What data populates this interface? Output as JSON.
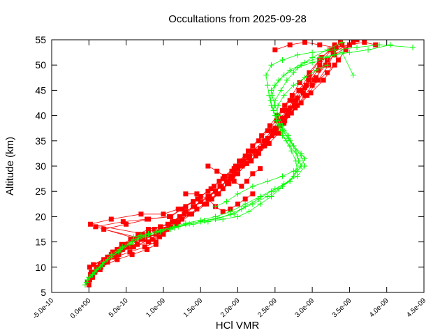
{
  "chart_data": {
    "type": "line",
    "title": "Occultations from 2025-09-28",
    "xlabel": "HCl VMR",
    "ylabel": "Altitude (km)",
    "xlim": [
      -5e-10,
      4.5e-09
    ],
    "ylim": [
      5,
      55
    ],
    "x_ticks": [
      -5e-10,
      0,
      5e-10,
      1e-09,
      1.5e-09,
      2e-09,
      2.5e-09,
      3e-09,
      3.5e-09,
      4e-09,
      4.5e-09
    ],
    "x_tick_labels": [
      "-5.0e-10",
      "0.0e+00",
      "5.0e-10",
      "1.0e-09",
      "1.5e-09",
      "2.0e-09",
      "2.5e-09",
      "3.0e-09",
      "3.5e-09",
      "4.0e-09",
      "4.5e-09"
    ],
    "y_ticks": [
      5,
      10,
      15,
      20,
      25,
      30,
      35,
      40,
      45,
      50,
      55
    ],
    "y_tick_labels": [
      "5",
      "10",
      "15",
      "20",
      "25",
      "30",
      "35",
      "40",
      "45",
      "50",
      "55"
    ],
    "grid": false,
    "legend": "none",
    "series": [
      {
        "color": "#ff0000",
        "marker": "square",
        "profiles": [
          {
            "x": [
              -2e-11,
              3e-11,
              1e-10,
              2e-10,
              3e-10,
              4.5e-10,
              6e-10,
              8e-10,
              1e-09,
              1.15e-09,
              1.3e-09,
              1.5e-09,
              1.7e-09,
              1.85e-09,
              1.95e-09,
              2.05e-09,
              2.2e-09,
              2.35e-09,
              2.45e-09,
              2.55e-09,
              2.65e-09,
              2.75e-09,
              2.85e-09,
              2.95e-09,
              3.1e-09,
              3.25e-09
            ],
            "y": [
              7,
              8,
              9.5,
              11,
              12.5,
              14,
              15.5,
              16.5,
              17.5,
              19,
              21,
              23,
              25,
              27,
              29,
              31,
              33,
              35,
              37,
              39,
              41,
              43,
              45,
              47,
              50,
              53
            ]
          },
          {
            "x": [
              0,
              5e-11,
              1.5e-10,
              2.5e-10,
              4e-10,
              5.5e-10,
              7.5e-10,
              9.5e-10,
              1.1e-09,
              1.25e-09,
              1.45e-09,
              1.65e-09,
              1.8e-09,
              1.9e-09,
              2e-09,
              2.15e-09,
              2.3e-09,
              2.4e-09,
              2.5e-09,
              2.6e-09,
              2.7e-09,
              2.8e-09,
              2.9e-09,
              3.05e-09,
              3.2e-09,
              3.4e-09
            ],
            "y": [
              6.5,
              8,
              9.5,
              11,
              12.5,
              14,
              15.5,
              17,
              18,
              19.5,
              21.5,
              23.5,
              25.5,
              27.5,
              29.5,
              31.5,
              33.5,
              35.5,
              37.5,
              39.5,
              41.5,
              43.5,
              45.5,
              47.5,
              51,
              54
            ]
          },
          {
            "x": [
              2e-11,
              1e-10,
              2e-10,
              3.5e-10,
              5e-10,
              7e-10,
              9e-10,
              1.05e-09,
              1.2e-09,
              1.35e-09,
              1.55e-09,
              1.72e-09,
              1.88e-09,
              2e-09,
              2.12e-09,
              2.28e-09,
              2.42e-09,
              2.55e-09,
              2.62e-09,
              2.72e-09,
              2.85e-09,
              2.98e-09,
              3.15e-09,
              3.3e-09,
              3.45e-09
            ],
            "y": [
              8,
              9.5,
              11,
              12.5,
              14,
              15.5,
              16.5,
              17.5,
              19,
              20.5,
              22.5,
              24.5,
              26.5,
              28.5,
              30.5,
              32.5,
              34.5,
              36.5,
              38.5,
              40.5,
              42.5,
              44.5,
              47,
              50,
              53
            ]
          },
          {
            "x": [
              1e-11,
              2e-10,
              4e-10,
              6e-10,
              8e-10,
              9.5e-10,
              2e-11,
              3e-10,
              7e-10,
              1e-09,
              1.2e-09,
              1.4e-09,
              1.6e-09,
              1.75e-09,
              1.92e-09,
              2.08e-09,
              2.25e-09,
              2.38e-09,
              2.48e-09,
              2.58e-09,
              2.68e-09,
              2.78e-09,
              2.92e-09,
              3.08e-09,
              3.3e-09,
              3.6e-09
            ],
            "y": [
              10,
              11.5,
              13,
              14,
              15,
              16,
              18.5,
              19.5,
              20.5,
              20.5,
              21.5,
              23,
              25,
              27,
              29,
              31,
              33,
              35,
              37,
              39,
              41,
              43,
              46,
              49,
              52,
              55
            ]
          },
          {
            "x": [
              3e-11,
              1.5e-10,
              3.5e-10,
              5.5e-10,
              7.5e-10,
              9e-10,
              2e-10,
              5e-10,
              8e-10,
              1.1e-09,
              1.3e-09,
              1.5e-09,
              1.68e-09,
              1.82e-09,
              1.97e-09,
              2.1e-09,
              2.2e-09,
              2.32e-09,
              2.43e-09,
              2.53e-09,
              2.63e-09,
              2.73e-09,
              2.83e-09,
              2.96e-09,
              3.12e-09,
              3.38e-09
            ],
            "y": [
              9,
              10.5,
              12,
              13,
              14,
              15,
              17.5,
              18.5,
              19.5,
              20,
              22,
              24,
              26,
              28,
              30,
              32,
              34,
              36,
              38,
              40,
              42,
              44,
              46.5,
              48.5,
              51.5,
              54.5
            ]
          },
          {
            "x": [
              6e-11,
              2.5e-10,
              4.5e-10,
              6.5e-10,
              8.5e-10,
              1e-09,
              1.18e-09,
              1.38e-09,
              1.58e-09,
              1.74e-09,
              1.86e-09,
              1.98e-09,
              2.18e-09,
              2.36e-09,
              2.5e-09,
              2.63e-09,
              2.77e-09,
              2.9e-09,
              3e-09,
              3.2e-09,
              3.35e-09,
              3.5e-09
            ],
            "y": [
              10.5,
              12,
              13.5,
              14.5,
              15.5,
              16.5,
              18.5,
              20.5,
              22.5,
              24.5,
              26.5,
              28.5,
              31,
              34,
              36.5,
              39,
              41.5,
              44,
              46,
              48.5,
              51,
              54
            ]
          },
          {
            "x": [
              4e-11,
              1.2e-10,
              2.2e-10,
              3.2e-10,
              4.4e-10,
              5.6e-10,
              6.6e-10,
              8e-10,
              9.6e-10,
              1.12e-09,
              1.28e-09,
              1.42e-09,
              1.62e-09,
              1.78e-09,
              1.9e-09,
              2.03e-09,
              2.16e-09,
              2.34e-09,
              2.46e-09,
              2.57e-09,
              2.67e-09,
              2.8e-09,
              2.93e-09,
              3.08e-09,
              3.22e-09,
              3.32e-09
            ],
            "y": [
              9,
              10,
              11.5,
              13,
              14.5,
              15.5,
              16.5,
              17.5,
              18,
              19,
              20.5,
              22,
              24,
              26,
              28,
              30,
              32,
              34,
              36,
              38,
              40,
              42,
              44,
              47,
              50,
              53.5
            ]
          },
          {
            "x": [
              1e-11,
              8e-11,
              1.8e-10,
              2.8e-10,
              3.8e-10,
              5e-10,
              6.2e-10,
              7.2e-10,
              8.8e-10,
              1.06e-09,
              1.22e-09,
              1.4e-09,
              1.6e-09,
              1.76e-09,
              1.93e-09,
              2.06e-09,
              2.24e-09,
              2.37e-09,
              2.52e-09,
              2.66e-09,
              2.76e-09,
              2.88e-09,
              3.02e-09,
              3.18e-09,
              3.28e-09,
              3.55e-09
            ],
            "y": [
              7.5,
              9,
              10.5,
              12,
              13.5,
              14.5,
              15.5,
              16.5,
              17.5,
              18.5,
              20,
              22,
              24,
              26,
              28,
              30,
              32,
              35,
              37.5,
              40,
              42,
              44.5,
              47,
              50,
              52.5,
              54.5
            ]
          },
          {
            "x": [
              2e-11,
              1.6e-10,
              3.8e-10,
              5.8e-10,
              7.8e-10,
              9e-10,
              9e-11,
              4.6e-10,
              7.8e-10,
              1.08e-09,
              1.25e-09,
              1.46e-09,
              1.64e-09,
              1.8e-09,
              1.95e-09,
              2.02e-09,
              2.14e-09,
              2.28e-09,
              2.4e-09,
              2.52e-09,
              2.6e-09,
              2.7e-09,
              2.82e-09,
              2.96e-09,
              3.1e-09,
              3.3e-09
            ],
            "y": [
              8.5,
              10,
              11.5,
              12.5,
              13.5,
              14.5,
              18,
              19,
              19.5,
              20,
              21.5,
              23.5,
              25.5,
              27.5,
              29.5,
              31,
              33,
              35,
              37,
              39,
              41,
              43,
              45,
              48,
              51,
              54
            ]
          },
          {
            "x": [
              1.3e-09,
              1.45e-09,
              1.6e-09,
              1.7e-09,
              1.8e-09,
              1.9e-09,
              2e-09,
              2.1e-09,
              2.2e-09
            ],
            "y": [
              24.5,
              24.5,
              23.5,
              22,
              21,
              21.5,
              22.5,
              23.5,
              24.5
            ]
          },
          {
            "x": [
              1.6e-09,
              1.72e-09,
              1.83e-09,
              1.95e-09,
              2.05e-09,
              2.12e-09,
              2.2e-09,
              2.3e-09
            ],
            "y": [
              30,
              29,
              28,
              27,
              26,
              27,
              28.5,
              29.5
            ]
          },
          {
            "x": [
              2.5e-09,
              2.7e-09,
              2.9e-09,
              3.1e-09,
              3.3e-09,
              3.5e-09,
              3.7e-09,
              3.85e-09
            ],
            "y": [
              53,
              54,
              54.5,
              54,
              53.5,
              54,
              54.5,
              54
            ]
          }
        ]
      },
      {
        "color": "#00ff00",
        "marker": "plus",
        "profiles": [
          {
            "x": [
              -5e-11,
              0,
              1e-10,
              2e-10,
              3e-10,
              4.5e-10,
              6e-10,
              8e-10,
              1e-09,
              1.2e-09,
              1.4e-09,
              1.6e-09,
              1.8e-09,
              2e-09,
              2.15e-09,
              2.3e-09,
              2.45e-09,
              2.6e-09,
              2.75e-09,
              2.85e-09,
              2.8e-09,
              2.7e-09,
              2.6e-09,
              2.55e-09,
              2.5e-09,
              2.45e-09,
              2.42e-09,
              2.4e-09,
              2.38e-09,
              2.45e-09,
              2.6e-09,
              2.8e-09,
              3e-09,
              3.3e-09,
              3.6e-09,
              3.9e-09,
              4.35e-09
            ],
            "y": [
              6.5,
              8,
              9.5,
              11,
              12.5,
              14,
              15.5,
              16.5,
              17.5,
              18,
              18.5,
              19,
              19.5,
              20,
              21,
              22.5,
              24,
              26,
              28,
              30,
              32,
              34,
              36,
              38,
              40,
              42,
              44,
              46,
              48,
              50,
              51,
              52,
              52.5,
              53,
              53.5,
              54,
              53.5
            ]
          },
          {
            "x": [
              -3e-11,
              5e-11,
              1.5e-10,
              2.5e-10,
              4e-10,
              5.5e-10,
              7e-10,
              9e-10,
              1.1e-09,
              1.3e-09,
              1.5e-09,
              1.7e-09,
              1.9e-09,
              2.05e-09,
              2.2e-09,
              2.4e-09,
              2.55e-09,
              2.7e-09,
              2.8e-09,
              2.78e-09,
              2.72e-09,
              2.65e-09,
              2.58e-09,
              2.52e-09,
              2.48e-09,
              2.44e-09,
              2.45e-09,
              2.55e-09,
              2.7e-09,
              2.9e-09,
              3.1e-09,
              3.3e-09,
              3.5e-09,
              3.75e-09,
              4.05e-09
            ],
            "y": [
              7,
              8.5,
              10,
              11.5,
              13,
              14.5,
              16,
              17,
              17.5,
              18.5,
              19,
              19.5,
              20.5,
              21.5,
              22.5,
              24,
              25.5,
              27,
              29,
              31,
              33,
              35,
              37,
              39,
              41,
              43,
              45,
              47,
              49,
              50.5,
              51.5,
              52,
              52.5,
              53,
              54
            ]
          },
          {
            "x": [
              -2e-11,
              8e-11,
              1.8e-10,
              3e-10,
              4.2e-10,
              5.8e-10,
              7.6e-10,
              9.6e-10,
              1.15e-09,
              1.35e-09,
              1.55e-09,
              1.75e-09,
              1.95e-09,
              2.1e-09,
              2.28e-09,
              2.45e-09,
              2.62e-09,
              2.8e-09,
              2.9e-09,
              2.85e-09,
              2.75e-09,
              2.68e-09,
              2.6e-09,
              2.55e-09,
              2.5e-09,
              2.46e-09,
              2.5e-09,
              2.62e-09,
              2.8e-09,
              3e-09,
              3.2e-09,
              3.4e-09,
              3.55e-09
            ],
            "y": [
              7.5,
              9,
              10.5,
              12,
              13.5,
              15,
              16,
              17,
              17.8,
              18.6,
              19.2,
              19.8,
              20.5,
              22,
              23.5,
              25,
              26.5,
              28,
              30,
              32,
              34,
              36,
              38,
              40,
              42,
              44,
              46,
              48,
              49.5,
              50.5,
              51.5,
              52.5,
              48
            ]
          },
          {
            "x": [
              6e-10,
              7e-10,
              8e-10,
              9e-10,
              1e-09,
              1.15e-09,
              1.3e-09,
              1.5e-09,
              1.7e-09,
              1.9e-09,
              2.1e-09,
              2.3e-09,
              2.5e-09,
              2.7e-09,
              2.78e-09,
              2.82e-09,
              2.78e-09,
              2.7e-09,
              2.6e-09,
              2.52e-09,
              2.48e-09,
              2.5e-09,
              2.58e-09,
              2.66e-09,
              2.75e-09,
              2.85e-09,
              3e-09,
              3.2e-09,
              3.4e-09
            ],
            "y": [
              16,
              16.3,
              16.6,
              17,
              17.5,
              18,
              18.7,
              19.3,
              20,
              21,
              22.5,
              24,
              25.5,
              27,
              29,
              31,
              33,
              35,
              37,
              39,
              41,
              43,
              45,
              47,
              48.5,
              50,
              51.5,
              53,
              54.5
            ]
          },
          {
            "x": [
              1.7e-09,
              1.85e-09,
              2e-09,
              2.2e-09,
              2.4e-09,
              2.6e-09,
              2.75e-09,
              2.85e-09,
              2.9e-09,
              2.85e-09,
              2.75e-09,
              2.68e-09,
              2.62e-09,
              2.56e-09,
              2.52e-09,
              2.54e-09,
              2.62e-09,
              2.75e-09,
              2.9e-09,
              3.05e-09,
              3.2e-09
            ],
            "y": [
              22,
              23,
              24.5,
              26,
              27,
              28,
              29,
              30,
              31.5,
              32.5,
              34,
              35.5,
              37,
              38.5,
              40,
              42,
              44,
              46,
              47.5,
              49,
              50
            ]
          }
        ]
      }
    ]
  }
}
